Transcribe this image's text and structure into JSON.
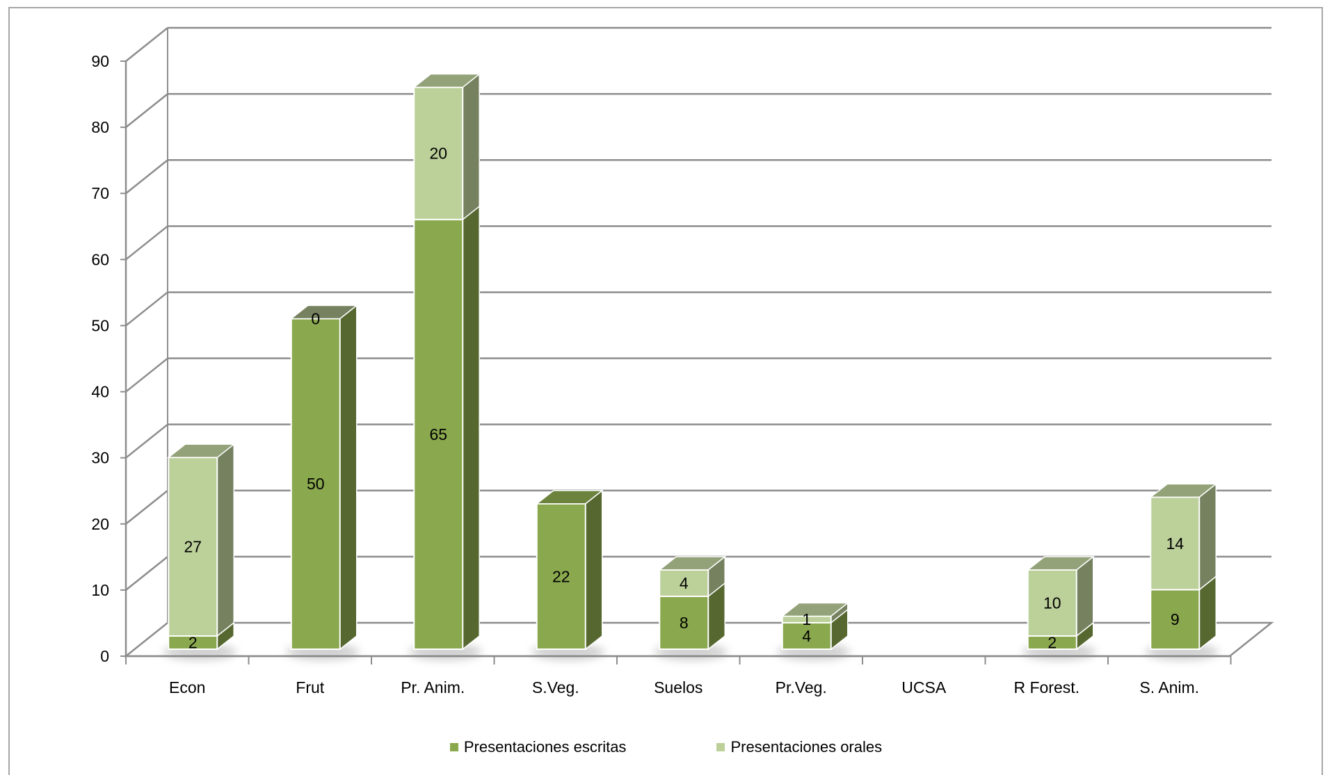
{
  "chart_data": {
    "type": "bar",
    "stacked": true,
    "three_d": true,
    "categories": [
      "Econ",
      "Frut",
      "Pr. Anim.",
      "S.Veg.",
      "Suelos",
      "Pr.Veg.",
      "UCSA",
      "R Forest.",
      "S. Anim."
    ],
    "series": [
      {
        "name": "Presentaciones escritas",
        "values": [
          2,
          50,
          65,
          22,
          8,
          4,
          0,
          2,
          9
        ],
        "labels": [
          "2",
          "50",
          "65",
          "22",
          "8",
          "4",
          "",
          "2",
          "9"
        ],
        "color": "#8aa84e"
      },
      {
        "name": "Presentaciones orales",
        "values": [
          27,
          0,
          20,
          0,
          4,
          1,
          0,
          10,
          14
        ],
        "labels": [
          "27",
          "0",
          "20",
          "",
          "4",
          "1",
          "",
          "10",
          "14"
        ],
        "color": "#bcd09a"
      }
    ],
    "y_ticks": [
      "0",
      "10",
      "20",
      "30",
      "40",
      "50",
      "60",
      "70",
      "80",
      "90"
    ],
    "ylim": [
      0,
      90
    ],
    "grid": true,
    "legend_position": "bottom"
  }
}
